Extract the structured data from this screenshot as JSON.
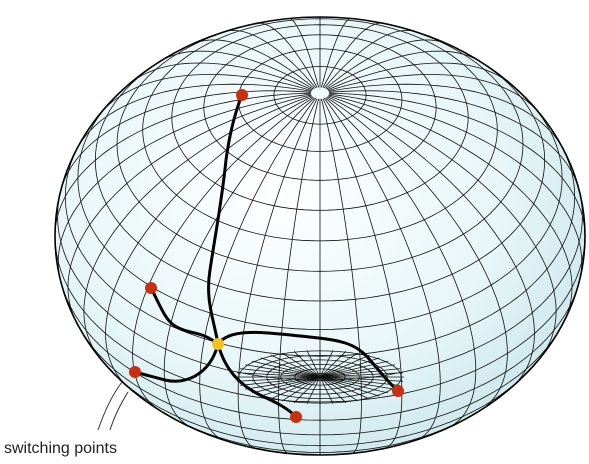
{
  "label": "switching points"
}
